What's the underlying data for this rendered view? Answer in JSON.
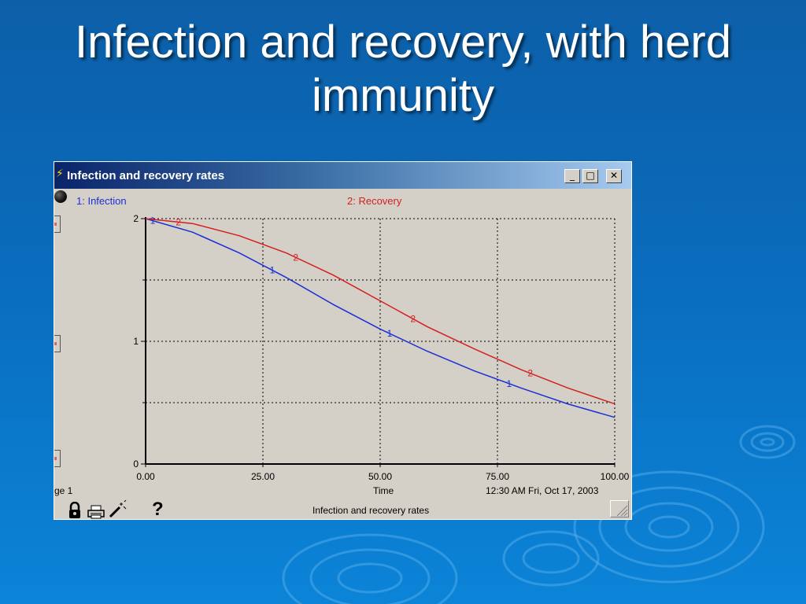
{
  "slide": {
    "title_line1": "Infection and recovery, with herd",
    "title_line2": "immunity"
  },
  "window": {
    "title": "Infection and recovery rates",
    "buttons": {
      "minimize": "_",
      "maximize": "□",
      "close": "✕"
    }
  },
  "legend": {
    "series1": "1: Infection",
    "series2": "2: Recovery"
  },
  "footer": {
    "page": "ge 1",
    "time_label": "Time",
    "timestamp": "12:30 AM  Fri, Oct 17, 2003",
    "caption": "Infection and recovery rates",
    "help": "?"
  },
  "colors": {
    "series1": "#1a2fd6",
    "series2": "#d41f1f",
    "window_bg": "#d4d0c8"
  },
  "chart_data": {
    "type": "line",
    "title": "Infection and recovery rates",
    "xlabel": "Time",
    "ylabel": "",
    "xlim": [
      0,
      100
    ],
    "ylim": [
      0,
      2
    ],
    "x_ticks": [
      "0.00",
      "25.00",
      "50.00",
      "75.00",
      "100.00"
    ],
    "y_ticks": [
      "0",
      "1",
      "2"
    ],
    "grid": true,
    "legend_position": "top",
    "series": [
      {
        "name": "1: Infection",
        "marker": "1",
        "x": [
          0,
          10,
          20,
          30,
          40,
          50,
          60,
          70,
          80,
          90,
          100
        ],
        "y": [
          2.0,
          1.89,
          1.72,
          1.52,
          1.3,
          1.1,
          0.92,
          0.76,
          0.62,
          0.49,
          0.38
        ]
      },
      {
        "name": "2: Recovery",
        "marker": "2",
        "x": [
          0,
          10,
          20,
          30,
          40,
          50,
          60,
          70,
          80,
          90,
          100
        ],
        "y": [
          2.0,
          1.96,
          1.86,
          1.72,
          1.54,
          1.33,
          1.12,
          0.94,
          0.77,
          0.62,
          0.49
        ]
      }
    ]
  }
}
